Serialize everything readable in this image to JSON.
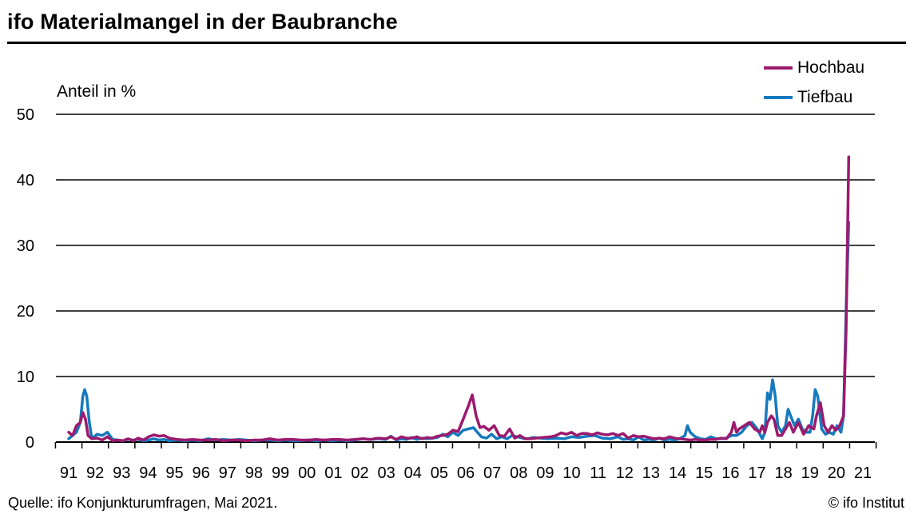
{
  "header": {
    "title": "ifo Materialmangel in der Baubranche"
  },
  "footer": {
    "source": "Quelle: ifo Konjunkturumfragen, Mai 2021.",
    "copyright": "© ifo Institut"
  },
  "colors": {
    "Hochbau": "#9c1a6e",
    "Tiefbau": "#1479bf"
  },
  "chart_data": {
    "type": "line",
    "title": "ifo Materialmangel in der Baubranche",
    "ylabel": "Anteil in %",
    "xlabel": "",
    "ylim": [
      0,
      50
    ],
    "yticks": [
      0,
      10,
      20,
      30,
      40,
      50
    ],
    "grid": true,
    "legend_position": "top-right",
    "xlim": [
      1991.0,
      2021.8
    ],
    "xtick_labels": [
      "91",
      "92",
      "93",
      "94",
      "95",
      "96",
      "97",
      "98",
      "99",
      "00",
      "01",
      "02",
      "03",
      "04",
      "05",
      "06",
      "07",
      "08",
      "09",
      "10",
      "11",
      "12",
      "13",
      "14",
      "15",
      "16",
      "17",
      "18",
      "19",
      "20",
      "21"
    ],
    "series": [
      {
        "name": "Hochbau",
        "color": "#9c1a6e",
        "points": [
          [
            1991.0,
            1.5
          ],
          [
            1991.15,
            1.0
          ],
          [
            1991.3,
            2.5
          ],
          [
            1991.45,
            3.0
          ],
          [
            1991.55,
            4.5
          ],
          [
            1991.65,
            3.5
          ],
          [
            1991.75,
            1.0
          ],
          [
            1991.9,
            0.5
          ],
          [
            1992.1,
            0.6
          ],
          [
            1992.3,
            0.3
          ],
          [
            1992.5,
            0.8
          ],
          [
            1992.7,
            0.2
          ],
          [
            1992.9,
            0.3
          ],
          [
            1993.1,
            0.2
          ],
          [
            1993.3,
            0.5
          ],
          [
            1993.5,
            0.2
          ],
          [
            1993.7,
            0.6
          ],
          [
            1993.9,
            0.3
          ],
          [
            1994.1,
            0.8
          ],
          [
            1994.3,
            1.1
          ],
          [
            1994.5,
            0.9
          ],
          [
            1994.7,
            1.0
          ],
          [
            1994.9,
            0.6
          ],
          [
            1995.2,
            0.4
          ],
          [
            1995.5,
            0.3
          ],
          [
            1995.8,
            0.4
          ],
          [
            1996.1,
            0.3
          ],
          [
            1996.4,
            0.3
          ],
          [
            1996.7,
            0.4
          ],
          [
            1997.0,
            0.2
          ],
          [
            1997.3,
            0.3
          ],
          [
            1997.6,
            0.3
          ],
          [
            1997.9,
            0.2
          ],
          [
            1998.2,
            0.3
          ],
          [
            1998.5,
            0.3
          ],
          [
            1998.8,
            0.5
          ],
          [
            1999.1,
            0.3
          ],
          [
            1999.4,
            0.4
          ],
          [
            1999.7,
            0.4
          ],
          [
            2000.0,
            0.3
          ],
          [
            2000.3,
            0.3
          ],
          [
            2000.6,
            0.4
          ],
          [
            2000.9,
            0.3
          ],
          [
            2001.2,
            0.4
          ],
          [
            2001.5,
            0.4
          ],
          [
            2001.8,
            0.3
          ],
          [
            2002.1,
            0.4
          ],
          [
            2002.4,
            0.5
          ],
          [
            2002.7,
            0.4
          ],
          [
            2003.0,
            0.6
          ],
          [
            2003.3,
            0.5
          ],
          [
            2003.5,
            0.8
          ],
          [
            2003.7,
            0.4
          ],
          [
            2003.9,
            0.8
          ],
          [
            2004.1,
            0.6
          ],
          [
            2004.3,
            0.6
          ],
          [
            2004.5,
            0.8
          ],
          [
            2004.7,
            0.5
          ],
          [
            2004.9,
            0.7
          ],
          [
            2005.1,
            0.6
          ],
          [
            2005.3,
            0.9
          ],
          [
            2005.5,
            1.0
          ],
          [
            2005.7,
            1.2
          ],
          [
            2005.9,
            1.8
          ],
          [
            2006.1,
            1.6
          ],
          [
            2006.3,
            3.5
          ],
          [
            2006.5,
            5.5
          ],
          [
            2006.65,
            7.2
          ],
          [
            2006.8,
            4.0
          ],
          [
            2006.95,
            2.2
          ],
          [
            2007.1,
            2.4
          ],
          [
            2007.3,
            1.8
          ],
          [
            2007.5,
            2.5
          ],
          [
            2007.7,
            1.0
          ],
          [
            2007.9,
            0.9
          ],
          [
            2008.1,
            2.0
          ],
          [
            2008.3,
            0.6
          ],
          [
            2008.5,
            1.0
          ],
          [
            2008.7,
            0.5
          ],
          [
            2008.9,
            0.5
          ],
          [
            2009.1,
            0.6
          ],
          [
            2009.4,
            0.7
          ],
          [
            2009.7,
            0.8
          ],
          [
            2009.9,
            1.0
          ],
          [
            2010.1,
            1.4
          ],
          [
            2010.3,
            1.2
          ],
          [
            2010.5,
            1.5
          ],
          [
            2010.7,
            1.0
          ],
          [
            2010.9,
            1.3
          ],
          [
            2011.1,
            1.3
          ],
          [
            2011.3,
            1.1
          ],
          [
            2011.5,
            1.4
          ],
          [
            2011.7,
            1.2
          ],
          [
            2011.9,
            1.1
          ],
          [
            2012.1,
            1.3
          ],
          [
            2012.3,
            1.0
          ],
          [
            2012.5,
            1.3
          ],
          [
            2012.7,
            0.6
          ],
          [
            2012.9,
            1.0
          ],
          [
            2013.1,
            0.8
          ],
          [
            2013.3,
            0.9
          ],
          [
            2013.5,
            0.7
          ],
          [
            2013.7,
            0.5
          ],
          [
            2013.9,
            0.6
          ],
          [
            2014.1,
            0.5
          ],
          [
            2014.3,
            0.8
          ],
          [
            2014.5,
            0.6
          ],
          [
            2014.7,
            0.5
          ],
          [
            2014.9,
            0.4
          ],
          [
            2015.1,
            0.3
          ],
          [
            2015.3,
            0.4
          ],
          [
            2015.5,
            0.3
          ],
          [
            2015.7,
            0.3
          ],
          [
            2015.9,
            0.4
          ],
          [
            2016.1,
            0.4
          ],
          [
            2016.3,
            0.6
          ],
          [
            2016.5,
            0.5
          ],
          [
            2016.7,
            1.5
          ],
          [
            2016.8,
            3.0
          ],
          [
            2016.9,
            1.5
          ],
          [
            2017.0,
            2.0
          ],
          [
            2017.2,
            2.5
          ],
          [
            2017.4,
            3.0
          ],
          [
            2017.6,
            2.0
          ],
          [
            2017.8,
            1.5
          ],
          [
            2017.9,
            2.5
          ],
          [
            2018.0,
            1.5
          ],
          [
            2018.1,
            3.0
          ],
          [
            2018.25,
            4.0
          ],
          [
            2018.35,
            3.5
          ],
          [
            2018.5,
            1.0
          ],
          [
            2018.65,
            1.0
          ],
          [
            2018.8,
            2.0
          ],
          [
            2018.95,
            3.0
          ],
          [
            2019.1,
            1.5
          ],
          [
            2019.3,
            3.0
          ],
          [
            2019.5,
            1.2
          ],
          [
            2019.7,
            2.5
          ],
          [
            2019.9,
            2.0
          ],
          [
            2020.0,
            4.0
          ],
          [
            2020.15,
            6.0
          ],
          [
            2020.3,
            2.5
          ],
          [
            2020.45,
            1.5
          ],
          [
            2020.6,
            2.5
          ],
          [
            2020.75,
            1.8
          ],
          [
            2020.9,
            2.5
          ],
          [
            2021.05,
            4.0
          ],
          [
            2021.15,
            17.0
          ],
          [
            2021.2,
            30.0
          ],
          [
            2021.25,
            43.5
          ]
        ]
      },
      {
        "name": "Tiefbau",
        "color": "#1479bf",
        "points": [
          [
            1991.0,
            0.5
          ],
          [
            1991.15,
            1.0
          ],
          [
            1991.3,
            1.5
          ],
          [
            1991.45,
            3.0
          ],
          [
            1991.55,
            7.0
          ],
          [
            1991.62,
            8.0
          ],
          [
            1991.7,
            7.0
          ],
          [
            1991.8,
            3.0
          ],
          [
            1991.9,
            0.5
          ],
          [
            1992.1,
            1.2
          ],
          [
            1992.3,
            1.0
          ],
          [
            1992.5,
            1.5
          ],
          [
            1992.7,
            0.4
          ],
          [
            1992.9,
            0.3
          ],
          [
            1993.1,
            0.2
          ],
          [
            1993.3,
            0.4
          ],
          [
            1993.5,
            0.3
          ],
          [
            1993.7,
            0.4
          ],
          [
            1993.9,
            0.2
          ],
          [
            1994.1,
            0.3
          ],
          [
            1994.3,
            0.5
          ],
          [
            1994.5,
            0.3
          ],
          [
            1994.7,
            0.4
          ],
          [
            1994.9,
            0.2
          ],
          [
            1995.2,
            0.3
          ],
          [
            1995.5,
            0.2
          ],
          [
            1995.8,
            0.3
          ],
          [
            1996.1,
            0.2
          ],
          [
            1996.4,
            0.5
          ],
          [
            1996.7,
            0.3
          ],
          [
            1997.0,
            0.4
          ],
          [
            1997.3,
            0.3
          ],
          [
            1997.6,
            0.4
          ],
          [
            1997.9,
            0.3
          ],
          [
            1998.2,
            0.2
          ],
          [
            1998.5,
            0.3
          ],
          [
            1998.8,
            0.3
          ],
          [
            1999.1,
            0.2
          ],
          [
            1999.4,
            0.3
          ],
          [
            1999.7,
            0.2
          ],
          [
            2000.0,
            0.2
          ],
          [
            2000.3,
            0.3
          ],
          [
            2000.6,
            0.2
          ],
          [
            2000.9,
            0.3
          ],
          [
            2001.2,
            0.2
          ],
          [
            2001.5,
            0.3
          ],
          [
            2001.8,
            0.2
          ],
          [
            2002.1,
            0.3
          ],
          [
            2002.4,
            0.5
          ],
          [
            2002.7,
            0.4
          ],
          [
            2003.0,
            0.5
          ],
          [
            2003.3,
            0.4
          ],
          [
            2003.5,
            0.9
          ],
          [
            2003.7,
            0.3
          ],
          [
            2003.9,
            0.5
          ],
          [
            2004.1,
            0.4
          ],
          [
            2004.3,
            0.7
          ],
          [
            2004.5,
            0.4
          ],
          [
            2004.7,
            0.6
          ],
          [
            2004.9,
            0.5
          ],
          [
            2005.1,
            0.6
          ],
          [
            2005.3,
            0.7
          ],
          [
            2005.5,
            1.2
          ],
          [
            2005.7,
            0.8
          ],
          [
            2005.9,
            1.5
          ],
          [
            2006.1,
            1.0
          ],
          [
            2006.3,
            1.8
          ],
          [
            2006.5,
            2.0
          ],
          [
            2006.7,
            2.2
          ],
          [
            2006.85,
            1.5
          ],
          [
            2007.0,
            0.8
          ],
          [
            2007.2,
            0.6
          ],
          [
            2007.4,
            1.2
          ],
          [
            2007.6,
            0.5
          ],
          [
            2007.8,
            0.8
          ],
          [
            2008.0,
            0.5
          ],
          [
            2008.2,
            1.0
          ],
          [
            2008.4,
            0.8
          ],
          [
            2008.6,
            0.6
          ],
          [
            2008.8,
            0.5
          ],
          [
            2009.0,
            0.7
          ],
          [
            2009.3,
            0.6
          ],
          [
            2009.6,
            0.5
          ],
          [
            2009.9,
            0.6
          ],
          [
            2010.2,
            0.5
          ],
          [
            2010.5,
            0.8
          ],
          [
            2010.8,
            0.7
          ],
          [
            2011.1,
            0.9
          ],
          [
            2011.4,
            1.0
          ],
          [
            2011.7,
            0.6
          ],
          [
            2012.0,
            0.5
          ],
          [
            2012.3,
            0.8
          ],
          [
            2012.5,
            0.4
          ],
          [
            2012.7,
            0.5
          ],
          [
            2012.9,
            0.3
          ],
          [
            2013.1,
            0.8
          ],
          [
            2013.3,
            0.3
          ],
          [
            2013.5,
            0.4
          ],
          [
            2013.7,
            0.3
          ],
          [
            2013.9,
            0.6
          ],
          [
            2014.1,
            0.3
          ],
          [
            2014.3,
            0.4
          ],
          [
            2014.5,
            0.3
          ],
          [
            2014.7,
            0.5
          ],
          [
            2014.9,
            1.0
          ],
          [
            2015.0,
            2.5
          ],
          [
            2015.1,
            1.5
          ],
          [
            2015.3,
            0.8
          ],
          [
            2015.5,
            0.5
          ],
          [
            2015.7,
            0.4
          ],
          [
            2015.9,
            0.8
          ],
          [
            2016.1,
            0.5
          ],
          [
            2016.3,
            0.5
          ],
          [
            2016.5,
            0.6
          ],
          [
            2016.7,
            1.0
          ],
          [
            2016.9,
            1.0
          ],
          [
            2017.1,
            1.5
          ],
          [
            2017.3,
            2.5
          ],
          [
            2017.5,
            3.0
          ],
          [
            2017.7,
            2.0
          ],
          [
            2017.9,
            0.5
          ],
          [
            2018.0,
            1.5
          ],
          [
            2018.1,
            7.5
          ],
          [
            2018.2,
            6.5
          ],
          [
            2018.3,
            9.5
          ],
          [
            2018.4,
            7.0
          ],
          [
            2018.5,
            2.5
          ],
          [
            2018.65,
            1.5
          ],
          [
            2018.8,
            2.5
          ],
          [
            2018.9,
            5.0
          ],
          [
            2019.0,
            4.0
          ],
          [
            2019.15,
            2.5
          ],
          [
            2019.3,
            3.5
          ],
          [
            2019.45,
            2.0
          ],
          [
            2019.6,
            1.5
          ],
          [
            2019.75,
            1.5
          ],
          [
            2019.85,
            4.0
          ],
          [
            2019.95,
            8.0
          ],
          [
            2020.05,
            7.0
          ],
          [
            2020.2,
            2.0
          ],
          [
            2020.35,
            1.2
          ],
          [
            2020.5,
            1.5
          ],
          [
            2020.65,
            1.2
          ],
          [
            2020.8,
            2.5
          ],
          [
            2020.95,
            1.5
          ],
          [
            2021.05,
            4.0
          ],
          [
            2021.15,
            20.0
          ],
          [
            2021.25,
            33.5
          ]
        ]
      }
    ]
  }
}
